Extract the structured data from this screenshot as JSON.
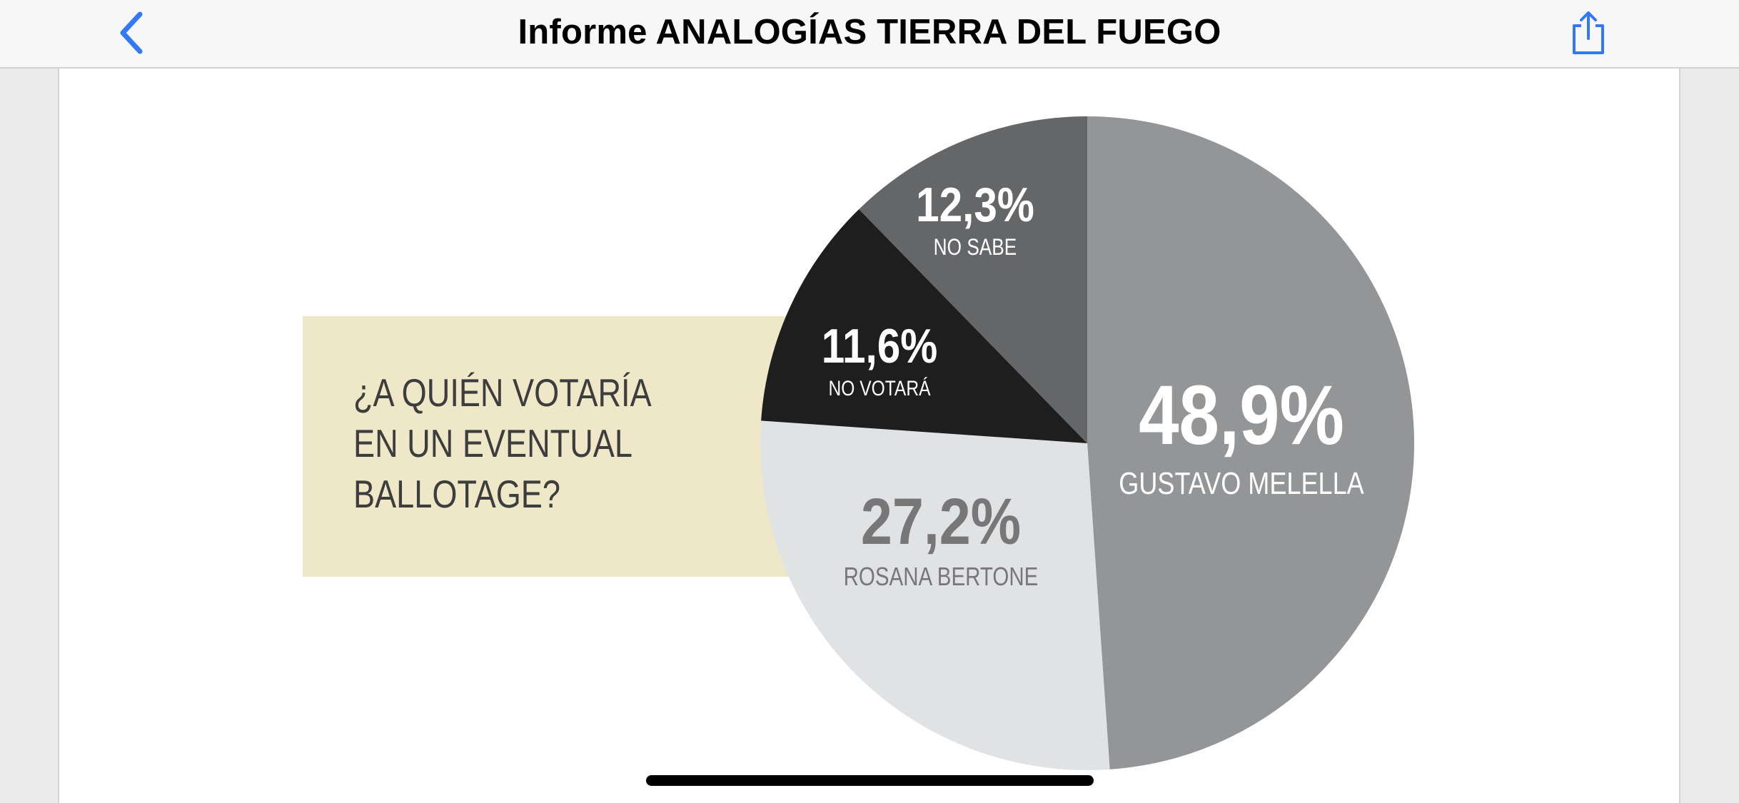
{
  "header": {
    "title": "Informe ANALOGÍAS TIERRA DEL FUEGO",
    "back_icon": "chevron-left-icon",
    "share_icon": "share-icon",
    "accent_color": "#3478f6"
  },
  "chart_data": {
    "type": "pie",
    "title": "¿A QUIÉN VOTARÍA\nEN UN EVENTUAL\nBALLOTAGE?",
    "slices": [
      {
        "label": "GUSTAVO MELELLA",
        "value": 48.9,
        "value_label": "48,9%",
        "color": "#949597",
        "text_color": "#ffffff"
      },
      {
        "label": "ROSANA BERTONE",
        "value": 27.2,
        "value_label": "27,2%",
        "color": "#e1e2e4",
        "text_color": "#777777"
      },
      {
        "label": "NO VOTARÁ",
        "value": 11.6,
        "value_label": "11,6%",
        "color": "#1f1e1f",
        "text_color": "#ffffff"
      },
      {
        "label": "NO SABE",
        "value": 12.3,
        "value_label": "12,3%",
        "color": "#656668",
        "text_color": "#ffffff"
      }
    ],
    "start_angle": "12 o'clock",
    "direction": "clockwise",
    "question_box_color": "#eee8c8"
  }
}
